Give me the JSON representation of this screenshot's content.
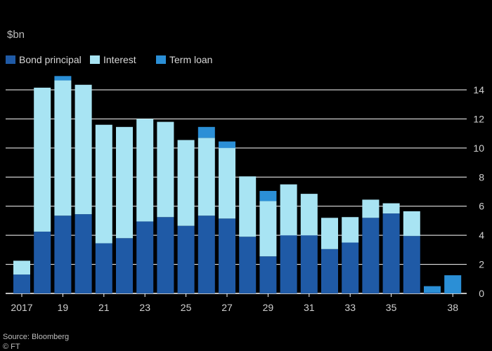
{
  "chart_data": {
    "type": "bar",
    "stacked": true,
    "unit_label": "$bn",
    "categories": [
      "2017",
      "2018",
      "19",
      "2020",
      "21",
      "2022",
      "23",
      "2024",
      "25",
      "2026",
      "27",
      "2028",
      "29",
      "2030",
      "31",
      "2032",
      "33",
      "2034",
      "35",
      "2036",
      "2037",
      "38"
    ],
    "x_tick_labels": [
      "2017",
      "",
      "19",
      "",
      "21",
      "",
      "23",
      "",
      "25",
      "",
      "27",
      "",
      "29",
      "",
      "31",
      "",
      "33",
      "",
      "35",
      "",
      "",
      "38"
    ],
    "series": [
      {
        "name": "Bond principal",
        "color": "#1f5aa6",
        "values": [
          1.3,
          4.25,
          5.35,
          5.45,
          3.45,
          3.8,
          4.95,
          5.25,
          4.65,
          5.35,
          5.15,
          3.9,
          2.55,
          4.0,
          4.0,
          3.05,
          3.5,
          5.2,
          5.5,
          3.95,
          0.05,
          0.0
        ]
      },
      {
        "name": "Interest",
        "color": "#a8e4f3",
        "values": [
          0.95,
          9.9,
          9.3,
          8.9,
          8.15,
          7.65,
          7.05,
          6.55,
          5.9,
          5.35,
          4.85,
          4.15,
          3.8,
          3.5,
          2.85,
          2.15,
          1.75,
          1.25,
          0.7,
          1.7,
          0.0,
          0.0
        ]
      },
      {
        "name": "Term loan",
        "color": "#2b8fd6",
        "values": [
          0.0,
          0.0,
          0.3,
          0.0,
          0.0,
          0.0,
          0.0,
          0.0,
          0.0,
          0.75,
          0.45,
          0.0,
          0.7,
          0.0,
          0.0,
          0.0,
          0.0,
          0.0,
          0.0,
          0.0,
          0.45,
          1.25
        ]
      }
    ],
    "y_ticks": [
      0,
      2,
      4,
      6,
      8,
      10,
      12,
      14
    ],
    "ylim": [
      0,
      15
    ],
    "grid": true,
    "y_axis_position": "right",
    "legend_placement": "top-left"
  },
  "footer": {
    "source": "Source: Bloomberg",
    "credit": "© FT"
  },
  "colors": {
    "background": "#000000",
    "gridline": "#ffffff",
    "baseline": "#ffffff"
  }
}
